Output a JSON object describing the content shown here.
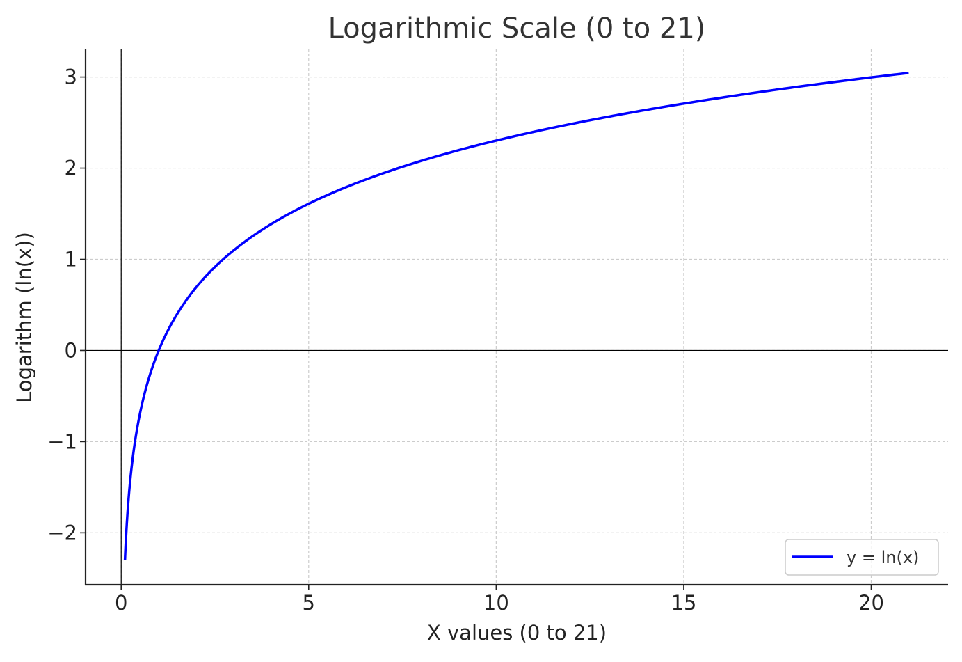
{
  "chart_data": {
    "type": "line",
    "title": "Logarithmic Scale (0 to 21)",
    "xlabel": "X values (0 to 21)",
    "ylabel": "Logarithm (ln(x))",
    "xlim": [
      -0.95,
      22.05
    ],
    "ylim": [
      -2.57,
      3.31
    ],
    "xticks": [
      0,
      5,
      10,
      15,
      20
    ],
    "xtick_labels": [
      "0",
      "5",
      "10",
      "15",
      "20"
    ],
    "yticks": [
      -2,
      -1,
      0,
      1,
      2,
      3
    ],
    "ytick_labels": [
      "−2",
      "−1",
      "0",
      "1",
      "2",
      "3"
    ],
    "grid": true,
    "grid_style": "dashed",
    "reference_lines": {
      "x": 0,
      "y": 0
    },
    "legend_position": "lower right",
    "series": [
      {
        "name": "y = ln(x)",
        "color": "#0000ff",
        "function": "ln(x)",
        "x_range": [
          0.1,
          21
        ],
        "points": [
          [
            0.1,
            -2.303
          ],
          [
            0.15,
            -1.897
          ],
          [
            0.2,
            -1.609
          ],
          [
            0.3,
            -1.204
          ],
          [
            0.4,
            -0.916
          ],
          [
            0.5,
            -0.693
          ],
          [
            0.7,
            -0.357
          ],
          [
            1,
            0
          ],
          [
            1.5,
            0.405
          ],
          [
            2,
            0.693
          ],
          [
            2.5,
            0.916
          ],
          [
            3,
            1.099
          ],
          [
            4,
            1.386
          ],
          [
            5,
            1.609
          ],
          [
            6,
            1.792
          ],
          [
            7,
            1.946
          ],
          [
            8,
            2.079
          ],
          [
            9,
            2.197
          ],
          [
            10,
            2.303
          ],
          [
            11,
            2.398
          ],
          [
            12,
            2.485
          ],
          [
            13,
            2.565
          ],
          [
            14,
            2.639
          ],
          [
            15,
            2.708
          ],
          [
            16,
            2.773
          ],
          [
            17,
            2.833
          ],
          [
            18,
            2.89
          ],
          [
            19,
            2.944
          ],
          [
            20,
            2.996
          ],
          [
            21,
            3.045
          ]
        ]
      }
    ]
  }
}
